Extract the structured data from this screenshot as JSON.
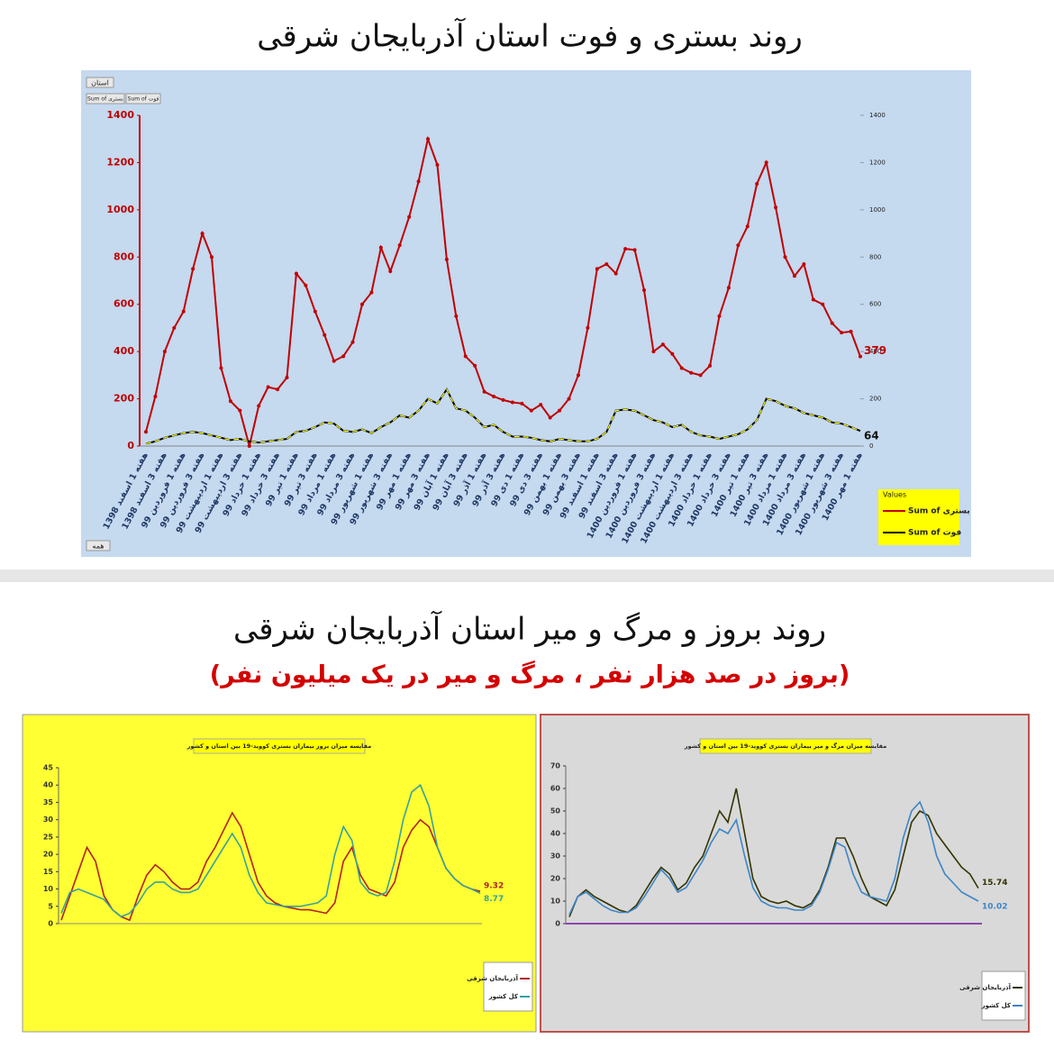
{
  "header": {
    "title": "روند بستری و فوت استان آذربایجان شرقی",
    "filter_label": "استان",
    "field_buttons": [
      "Sum of بستری",
      "Sum of فوت"
    ],
    "all_label": "همه",
    "legend_title": "Values"
  },
  "header2": {
    "title": "روند بروز و مرگ و میر استان آذربایجان شرقی",
    "subtitle": "(بروز در صد هزار نفر ، مرگ و میر در یک میلیون نفر)"
  },
  "chart_data": [
    {
      "type": "line",
      "categories": [
        "هفته 1 اسفند 1398",
        null,
        "هفته 3 اسفند 1398",
        null,
        "هفته 1 فروردین 99",
        null,
        "هفته 3 فروردین 99",
        null,
        "هفته 1 اردیبهشت 99",
        null,
        "هفته 3 اردیبهشت 99",
        null,
        "هفته 1 خرداد 99",
        null,
        "هفته 3 خرداد 99",
        null,
        "هفته 1 تیر 99",
        null,
        "هفته 3 تیر 99",
        null,
        "هفته 1 مرداد 99",
        null,
        "هفته 3 مرداد 99",
        null,
        "هفته 1 شهریور 99",
        null,
        "هفته 3 شهریور 99",
        null,
        "هفته 1 مهر 99",
        null,
        "هفته 3 مهر 99",
        null,
        "هفته 1 آبان 99",
        null,
        "هفته 3 آبان 99",
        null,
        "هفته 1 آذر 99",
        null,
        "هفته 3 آذر 99",
        null,
        "هفته 1 دی 99",
        null,
        "هفته 3 دی 99",
        null,
        "هفته 1 بهمن 99",
        null,
        "هفته 3 بهمن 99",
        null,
        "هفته 1 اسفند 99",
        null,
        "هفته 3 اسفند 99",
        null,
        "هفته 1 فروردین 1400",
        null,
        "هفته 3 فروردین 1400",
        null,
        "هفته 1 اردیبهشت 1400",
        null,
        "هفته 3 اردیبهشت 1400",
        null,
        "هفته 1 خرداد 1400",
        null,
        "هفته 3 خرداد 1400",
        null,
        "هفته 1 تیر 1400",
        null,
        "هفته 3 تیر 1400",
        null,
        "هفته 1 مرداد 1400",
        null,
        "هفته 3 مرداد 1400",
        null,
        "هفته 1 شهریور 1400",
        null,
        "هفته 3 شهریور 1400",
        null,
        "هفته 1 مهر 1400"
      ],
      "series": [
        {
          "name": "Sum of بستری",
          "color": "#c00000",
          "values": [
            60,
            210,
            400,
            500,
            570,
            750,
            900,
            800,
            330,
            190,
            150,
            0,
            170,
            250,
            240,
            290,
            730,
            680,
            570,
            470,
            360,
            380,
            440,
            600,
            650,
            840,
            740,
            850,
            970,
            1120,
            1300,
            1190,
            790,
            550,
            380,
            340,
            230,
            210,
            195,
            185,
            180,
            150,
            175,
            120,
            150,
            200,
            300,
            500,
            750,
            770,
            730,
            835,
            830,
            660,
            400,
            430,
            390,
            330,
            310,
            300,
            340,
            550,
            670,
            850,
            930,
            1110,
            1200,
            1010,
            800,
            720,
            770,
            620,
            600,
            520,
            480,
            485,
            379
          ]
        },
        {
          "name": "Sum of فوت",
          "color": "#000000",
          "values": [
            10,
            20,
            35,
            45,
            55,
            60,
            55,
            45,
            35,
            25,
            30,
            20,
            15,
            20,
            25,
            30,
            60,
            65,
            80,
            100,
            95,
            65,
            60,
            70,
            55,
            80,
            100,
            130,
            120,
            150,
            200,
            180,
            240,
            160,
            150,
            120,
            80,
            90,
            60,
            40,
            40,
            35,
            25,
            20,
            30,
            25,
            20,
            20,
            30,
            60,
            150,
            155,
            150,
            130,
            110,
            100,
            80,
            90,
            60,
            45,
            40,
            30,
            40,
            50,
            70,
            110,
            200,
            190,
            170,
            160,
            140,
            130,
            120,
            100,
            95,
            80,
            64
          ]
        }
      ],
      "ylim": [
        0,
        1400
      ],
      "yticks": [
        0,
        200,
        400,
        600,
        800,
        1000,
        1200,
        1400
      ],
      "y2lim": [
        0,
        1400
      ],
      "y2ticks": [
        0,
        200,
        400,
        600,
        800,
        1000,
        1200,
        1400
      ]
    },
    {
      "type": "line",
      "title": "مقایسه میزان بروز بیماران بستری کووید-19 بین استان و کشور",
      "series": [
        {
          "name": "آذربایجان شرقی",
          "color": "#b22222",
          "values": [
            1,
            8,
            15,
            22,
            18,
            8,
            4,
            2,
            1,
            8,
            14,
            17,
            15,
            12,
            10,
            10,
            12,
            18,
            22,
            27,
            32,
            28,
            20,
            12,
            8,
            6,
            5,
            4.5,
            4,
            4,
            3.5,
            3,
            6,
            18,
            22,
            14,
            10,
            9,
            8,
            12,
            22,
            27,
            30,
            28,
            22,
            16,
            13,
            11,
            10,
            9.32
          ]
        },
        {
          "name": "کل کشور",
          "color": "#3aa0a0",
          "values": [
            3,
            9,
            10,
            9,
            8,
            7,
            4,
            2,
            3,
            6,
            10,
            12,
            12,
            10,
            9,
            9,
            10,
            14,
            18,
            22,
            26,
            22,
            14,
            9,
            6,
            5.5,
            5,
            5,
            5,
            5.5,
            6,
            8,
            20,
            28,
            24,
            12,
            9,
            8,
            9,
            18,
            30,
            38,
            40,
            34,
            22,
            16,
            13,
            11,
            10,
            8.77
          ]
        }
      ],
      "ylim": [
        0,
        45
      ],
      "yticks": [
        0,
        5,
        10,
        15,
        20,
        25,
        30,
        35,
        40,
        45
      ]
    },
    {
      "type": "line",
      "title": "مقایسه میزان مرگ و میر بیماران بستری کووید-19 بین استان و کشور",
      "series": [
        {
          "name": "آذربایجان شرقی",
          "color": "#333300",
          "values": [
            3,
            12,
            15,
            12,
            10,
            8,
            6,
            5,
            8,
            14,
            20,
            25,
            22,
            15,
            18,
            25,
            30,
            40,
            50,
            45,
            60,
            40,
            20,
            12,
            10,
            9,
            10,
            8,
            7,
            9,
            15,
            25,
            38,
            38,
            30,
            20,
            12,
            10,
            8,
            15,
            30,
            45,
            50,
            48,
            40,
            35,
            30,
            25,
            22,
            15.74
          ]
        },
        {
          "name": "کل کشور",
          "color": "#3d85c6",
          "values": [
            4,
            12,
            14,
            11,
            8,
            6,
            5,
            5,
            7,
            12,
            18,
            24,
            20,
            14,
            16,
            22,
            28,
            36,
            42,
            40,
            46,
            30,
            16,
            10,
            8,
            7,
            7,
            6,
            6,
            8,
            14,
            24,
            36,
            34,
            22,
            14,
            12,
            11,
            10,
            20,
            38,
            50,
            54,
            45,
            30,
            22,
            18,
            14,
            12,
            10.02
          ]
        }
      ],
      "ylim": [
        0,
        70
      ],
      "yticks": [
        0,
        10,
        20,
        30,
        40,
        50,
        60,
        70
      ]
    }
  ]
}
